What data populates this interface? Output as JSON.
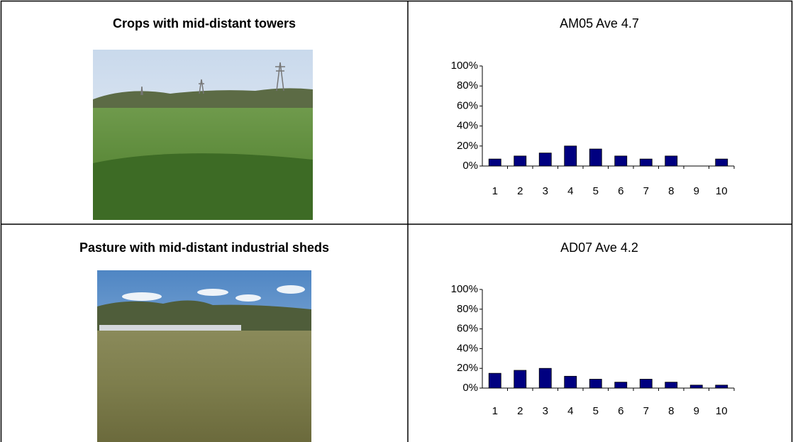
{
  "table": {
    "rows": [
      {
        "caption": "Crops with mid-distant towers"
      },
      {
        "caption": "Pasture with mid-distant industrial sheds"
      }
    ]
  },
  "chart_data": [
    {
      "type": "bar",
      "title": "AM05 Ave 4.7",
      "color": "#000080",
      "categories": [
        "1",
        "2",
        "3",
        "4",
        "5",
        "6",
        "7",
        "8",
        "9",
        "10"
      ],
      "values": [
        7,
        10,
        13,
        20,
        17,
        10,
        7,
        10,
        0,
        7
      ],
      "ylim": [
        0,
        100
      ],
      "yticks": [
        {
          "value": 0,
          "label": "0%"
        },
        {
          "value": 20,
          "label": "20%"
        },
        {
          "value": 40,
          "label": "40%"
        },
        {
          "value": 60,
          "label": "60%"
        },
        {
          "value": 80,
          "label": "80%"
        },
        {
          "value": 100,
          "label": "100%"
        }
      ]
    },
    {
      "type": "bar",
      "title": "AD07 Ave 4.2",
      "color": "#000080",
      "categories": [
        "1",
        "2",
        "3",
        "4",
        "5",
        "6",
        "7",
        "8",
        "9",
        "10"
      ],
      "values": [
        15,
        18,
        20,
        12,
        9,
        6,
        9,
        6,
        3,
        3
      ],
      "ylim": [
        0,
        100
      ],
      "yticks": [
        {
          "value": 0,
          "label": "0%"
        },
        {
          "value": 20,
          "label": "20%"
        },
        {
          "value": 40,
          "label": "40%"
        },
        {
          "value": 60,
          "label": "60%"
        },
        {
          "value": 80,
          "label": "80%"
        },
        {
          "value": 100,
          "label": "100%"
        }
      ]
    }
  ]
}
